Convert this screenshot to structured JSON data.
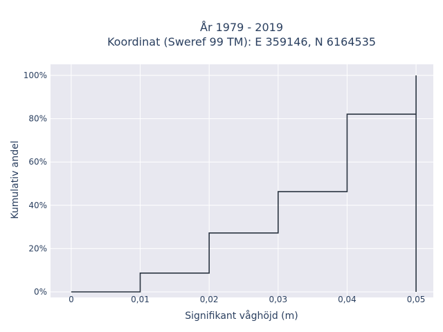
{
  "chart_data": {
    "type": "line",
    "line_shape": "step",
    "title_lines": [
      "År 1979 - 2019",
      "Koordinat (Sweref 99 TM): E 359146, N 6164535"
    ],
    "xlabel": "Signifikant våghöjd (m)",
    "ylabel": "Kumulativ andel",
    "x_ticks": [
      "0",
      "0,01",
      "0,02",
      "0,03",
      "0,04",
      "0,05"
    ],
    "y_ticks": [
      "0%",
      "20%",
      "40%",
      "60%",
      "80%",
      "100%"
    ],
    "xlim": [
      -0.003,
      0.0525
    ],
    "ylim": [
      0,
      100
    ],
    "grid": true,
    "colors": {
      "line": "#2a3441",
      "plot_bg": "#e8e8f0",
      "grid": "#ffffff",
      "text": "#2a3f5f"
    },
    "series": [
      {
        "x": [
          0,
          0.01,
          0.01,
          0.02,
          0.02,
          0.03,
          0.03,
          0.04,
          0.04,
          0.05,
          0.05,
          0.05
        ],
        "y": [
          0,
          0,
          8.7,
          8.7,
          27.2,
          27.2,
          46.3,
          46.3,
          82.1,
          82.1,
          100,
          0
        ]
      }
    ]
  }
}
